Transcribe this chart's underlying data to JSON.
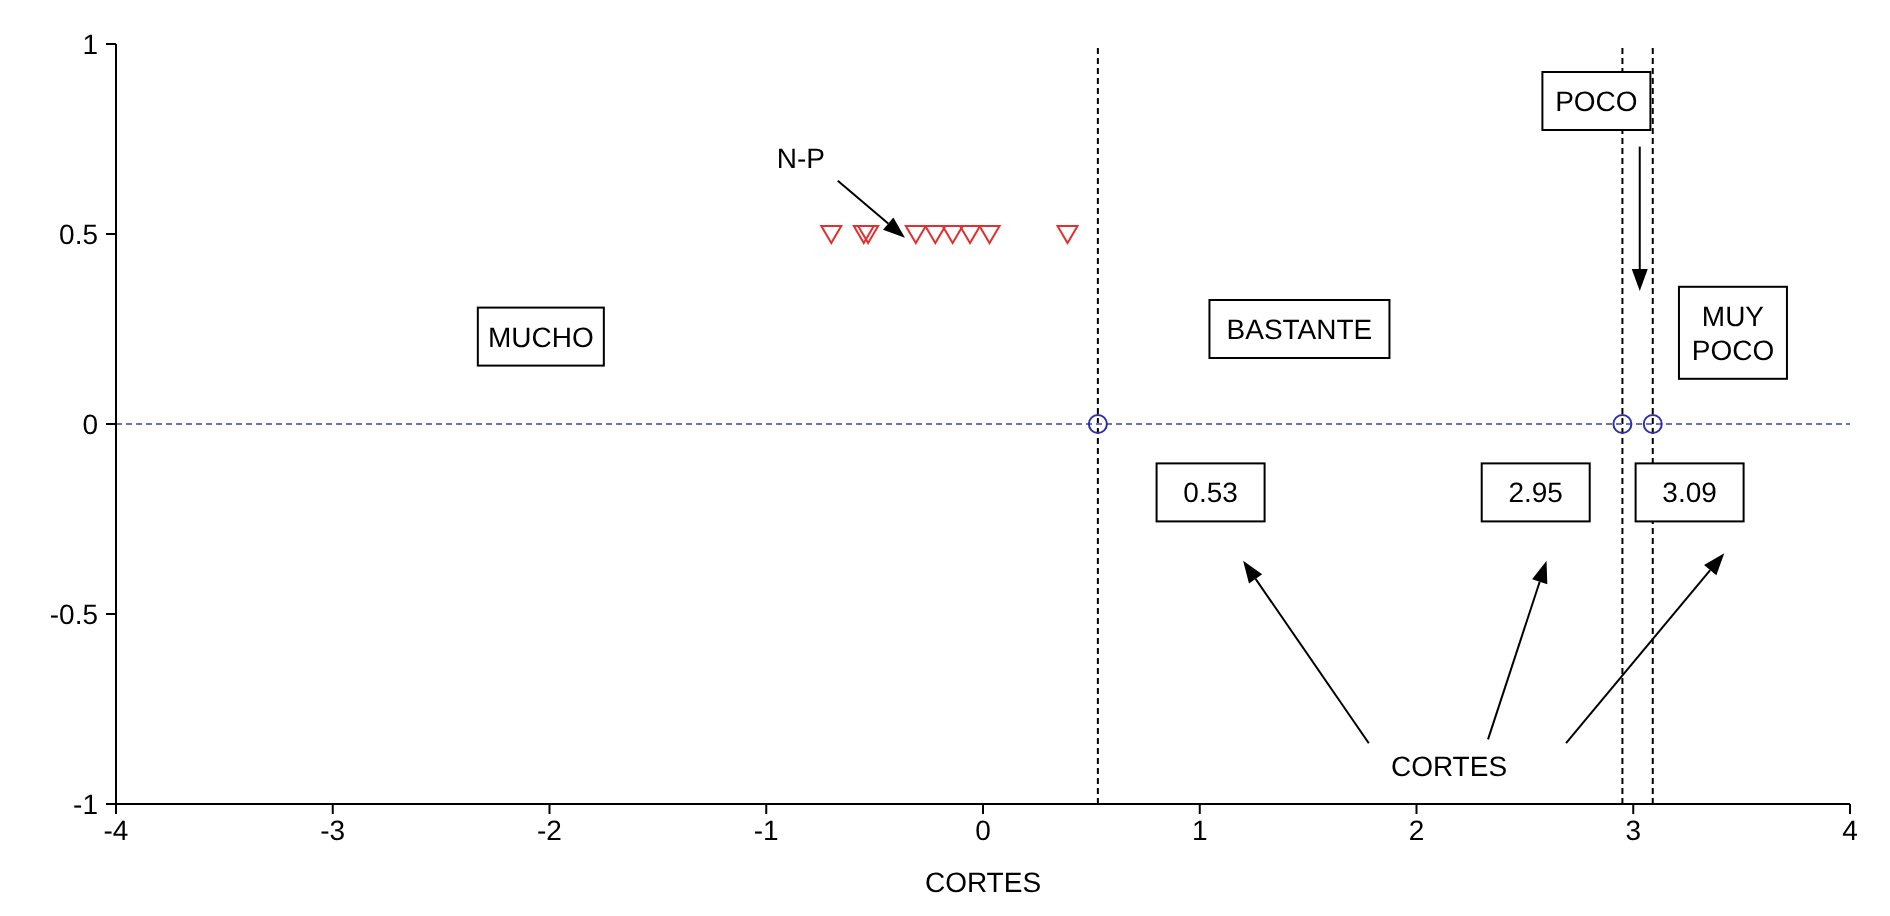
{
  "chart_data": {
    "type": "scatter",
    "xlabel": "CORTES",
    "series": [
      {
        "color": "#e03030",
        "marker": "triangle",
        "x": [
          -0.7,
          -0.55,
          -0.53,
          -0.31,
          -0.22,
          -0.14,
          -0.06,
          0.03,
          0.39
        ],
        "values": [
          0.5,
          0.5,
          0.5,
          0.5,
          0.5,
          0.5,
          0.5,
          0.5,
          0.5
        ]
      },
      {
        "color": "#3030a0",
        "marker": "circle",
        "x": [
          0.53,
          2.95,
          3.09
        ],
        "values": [
          0,
          0,
          0
        ]
      }
    ],
    "xlim": [
      -4,
      4
    ],
    "xticks": [
      -4,
      -3,
      -2,
      -1,
      0,
      1,
      2,
      3,
      4
    ],
    "ylim": [
      -1,
      1
    ],
    "yticks": [
      -1,
      -0.5,
      0,
      0.5,
      1
    ],
    "ref_lines": [
      {
        "axis": "x",
        "value": 0.53,
        "color": "#000000",
        "line_style": "dashed"
      },
      {
        "axis": "x",
        "value": 2.95,
        "color": "#000000",
        "line_style": "dashed"
      },
      {
        "axis": "x",
        "value": 3.09,
        "color": "#000000",
        "line_style": "dashed"
      },
      {
        "axis": "y",
        "value": 0,
        "color": "#7070c0",
        "line_style": "dashed"
      }
    ],
    "annotations": [
      "MUCHO",
      "BASTANTE",
      "POCO",
      "MUY\nPOCO",
      "0.53",
      "2.95",
      "3.09",
      "CORTES",
      "N-P"
    ]
  }
}
